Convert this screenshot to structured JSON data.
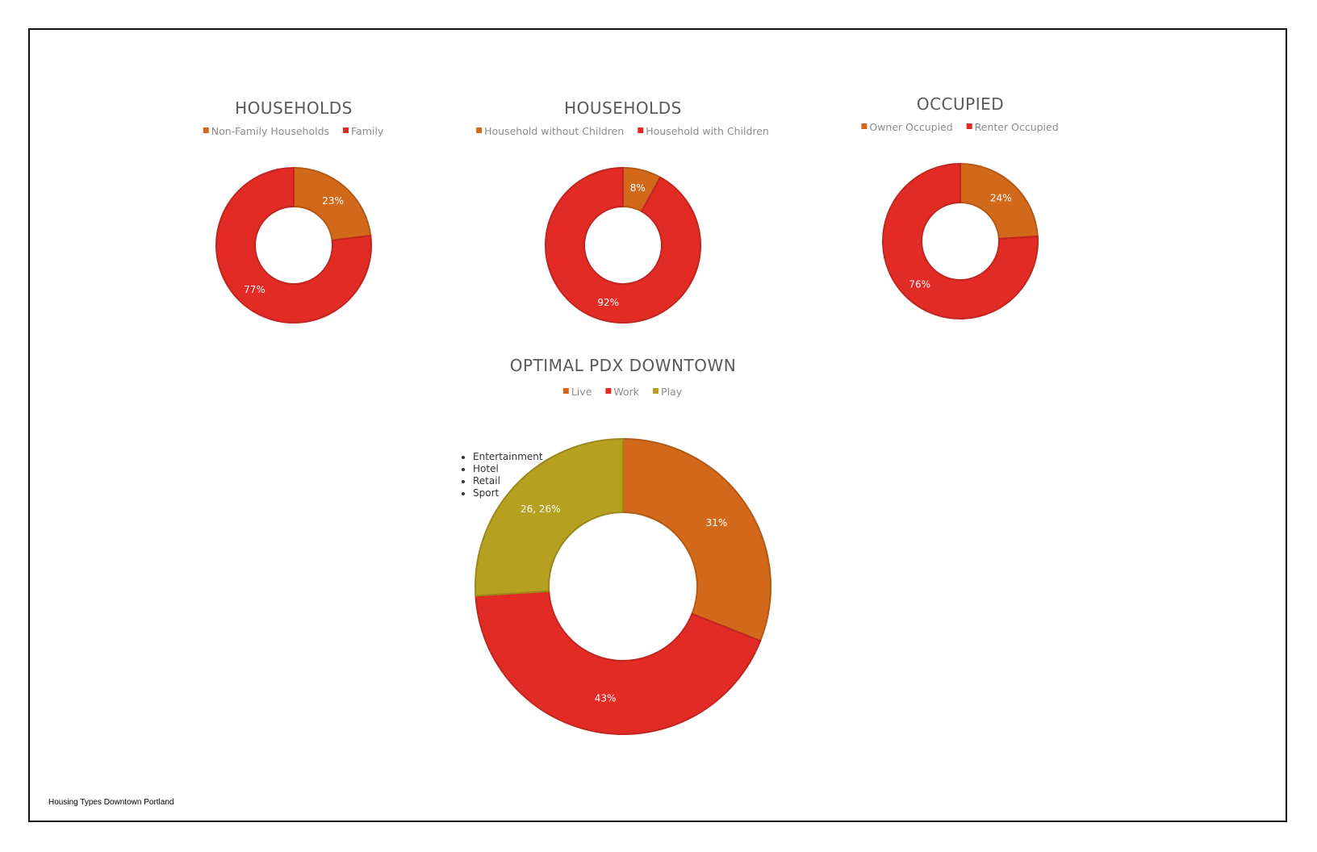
{
  "footer": "Housing Types Downtown Portland",
  "colors": {
    "orange": "#d2691a",
    "red": "#e32b26",
    "olive": "#b5a020"
  },
  "chart_data": [
    {
      "type": "pie",
      "donut": true,
      "title": "HOUSEHOLDS",
      "categories": [
        "Non-Family Households",
        "Family"
      ],
      "values": [
        23,
        77
      ],
      "labels": [
        "23%",
        "77%"
      ],
      "colors": [
        "#d2691a",
        "#e32b26"
      ],
      "legend": "top"
    },
    {
      "type": "pie",
      "donut": true,
      "title": "HOUSEHOLDS",
      "categories": [
        "Household without Children",
        "Household with Children"
      ],
      "values": [
        8,
        92
      ],
      "labels": [
        "8%",
        "92%"
      ],
      "colors": [
        "#d2691a",
        "#e32b26"
      ],
      "legend": "top"
    },
    {
      "type": "pie",
      "donut": true,
      "title": "OCCUPIED",
      "categories": [
        "Owner Occupied",
        "Renter Occupied"
      ],
      "values": [
        24,
        76
      ],
      "labels": [
        "24%",
        "76%"
      ],
      "colors": [
        "#d2691a",
        "#e32b26"
      ],
      "legend": "top"
    },
    {
      "type": "pie",
      "donut": true,
      "title": "OPTIMAL PDX DOWNTOWN",
      "categories": [
        "Live",
        "Work",
        "Play"
      ],
      "values": [
        31,
        43,
        26
      ],
      "labels": [
        "31%",
        "43%",
        "26, 26%"
      ],
      "colors": [
        "#d2691a",
        "#e32b26",
        "#b5a020"
      ],
      "legend": "top",
      "annotation": [
        "Entertainment",
        "Hotel",
        "Retail",
        "Sport"
      ]
    }
  ]
}
